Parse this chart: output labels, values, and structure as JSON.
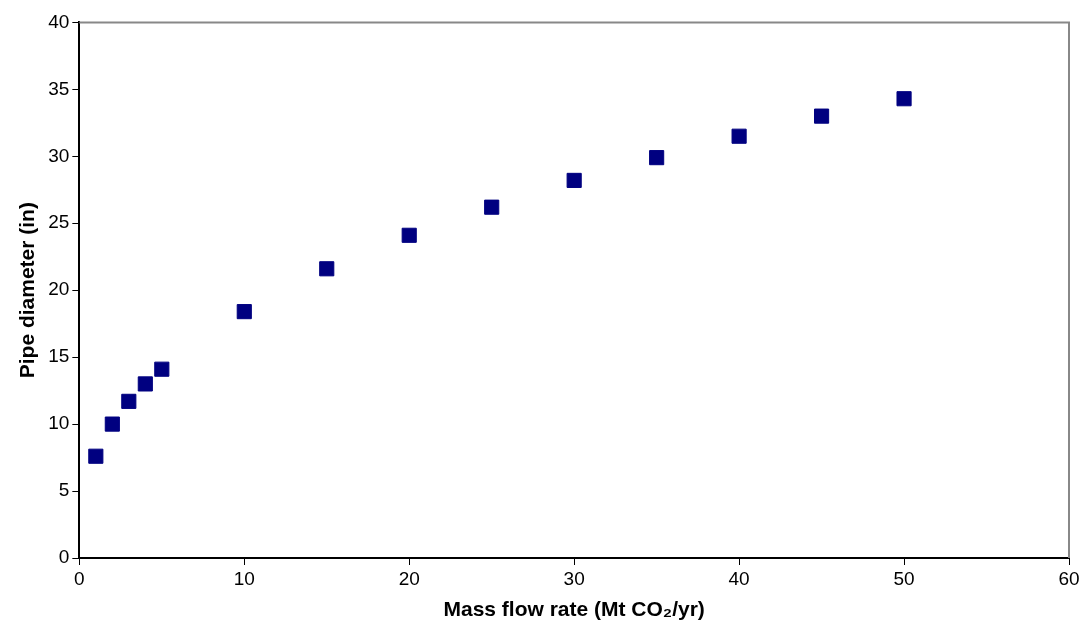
{
  "chart_data": {
    "type": "scatter",
    "xlabel": "Mass flow rate (Mt CO₂/yr)",
    "ylabel": "Pipe diameter (in)",
    "x": [
      1,
      2,
      3,
      4,
      5,
      10,
      15,
      20,
      25,
      30,
      35,
      40,
      45,
      50
    ],
    "series": [
      {
        "color": "#000080",
        "values": [
          7.6,
          10.0,
          11.7,
          13.0,
          14.1,
          18.4,
          21.6,
          24.1,
          26.2,
          28.2,
          29.9,
          31.5,
          33.0,
          34.3
        ]
      }
    ],
    "xlim": [
      0,
      60
    ],
    "xticks": [
      0,
      10,
      20,
      30,
      40,
      50,
      60
    ],
    "ylim": [
      0,
      40
    ],
    "yticks": [
      0,
      5,
      10,
      15,
      20,
      25,
      30,
      35,
      40
    ],
    "marker": "square",
    "legend": false
  }
}
